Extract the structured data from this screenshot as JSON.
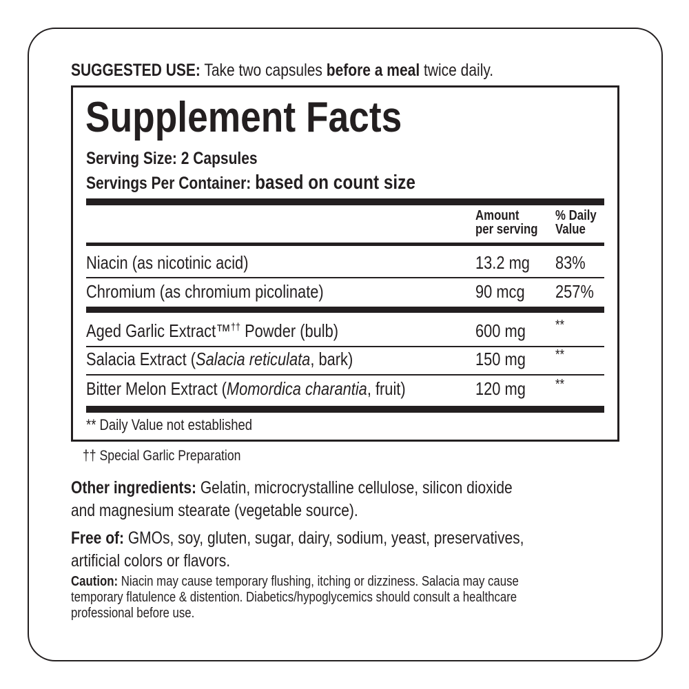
{
  "suggested_use": {
    "label": "SUGGESTED USE:",
    "text1": " Take two capsules ",
    "bold": "before a meal",
    "text2": " twice daily."
  },
  "facts": {
    "title": "Supplement Facts",
    "serving_size": "Serving Size: 2 Capsules",
    "servings_label": "Servings Per Container:",
    "servings_value": "based on count size",
    "header": {
      "amount_1": "Amount",
      "amount_2": "per serving",
      "dv_1": "% Daily",
      "dv_2": "Value"
    },
    "rows": [
      {
        "name": "Niacin (as nicotinic acid)",
        "amount": "13.2 mg",
        "dv": "83%"
      },
      {
        "name": "Chromium (as chromium picolinate)",
        "amount": "90 mcg",
        "dv": "257%"
      },
      {
        "name_pre": "Aged Garlic Extract™",
        "name_sup": "††",
        "name_post": " Powder (bulb)",
        "amount": "600 mg",
        "dv": "**"
      },
      {
        "name_pre": "Salacia Extract (",
        "name_it": "Salacia reticulata",
        "name_post": ", bark)",
        "amount": "150 mg",
        "dv": "**"
      },
      {
        "name_pre": "Bitter Melon Extract (",
        "name_it": "Momordica charantia",
        "name_post": ", fruit)",
        "amount": "120 mg",
        "dv": "**"
      }
    ],
    "footnote": "** Daily Value not established"
  },
  "garlic_note": "†† Special Garlic Preparation",
  "other": {
    "label": "Other ingredients:",
    "line1": " Gelatin, microcrystalline cellulose, silicon dioxide",
    "line2": "and magnesium stearate (vegetable source)."
  },
  "free": {
    "label": "Free of:",
    "line1": " GMOs, soy, gluten, sugar, dairy, sodium, yeast, preservatives,",
    "line2": "artificial colors or flavors."
  },
  "caution": {
    "label": "Caution:",
    "line1": " Niacin may cause temporary flushing, itching or dizziness. Salacia may cause",
    "line2": "temporary flatulence & distention. Diabetics/hypoglycemics should consult a healthcare",
    "line3": "professional before use."
  }
}
